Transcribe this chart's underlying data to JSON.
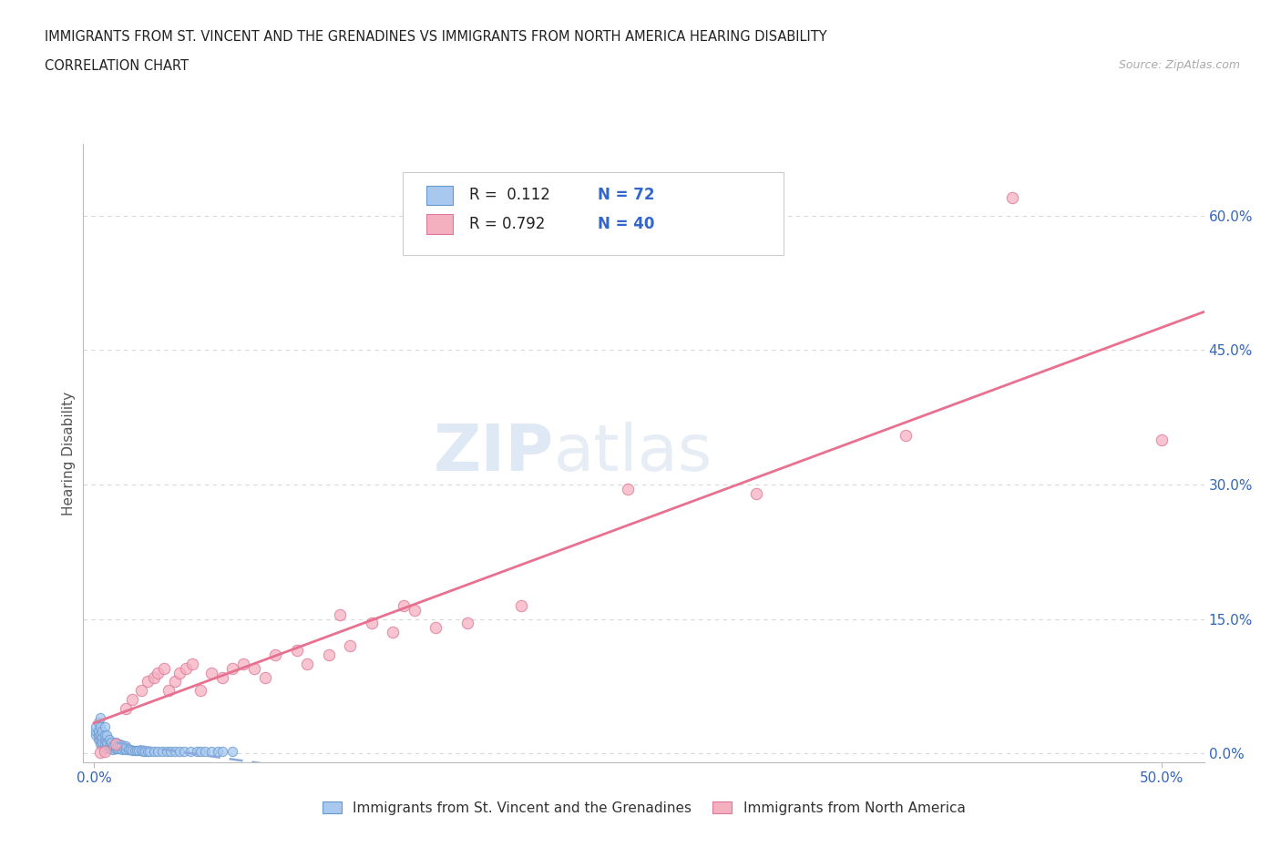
{
  "title_line1": "IMMIGRANTS FROM ST. VINCENT AND THE GRENADINES VS IMMIGRANTS FROM NORTH AMERICA HEARING DISABILITY",
  "title_line2": "CORRELATION CHART",
  "source": "Source: ZipAtlas.com",
  "ylabel": "Hearing Disability",
  "ytick_labels": [
    "0.0%",
    "15.0%",
    "30.0%",
    "45.0%",
    "60.0%"
  ],
  "ytick_values": [
    0.0,
    0.15,
    0.3,
    0.45,
    0.6
  ],
  "xtick_labels": [
    "0.0%",
    "50.0%"
  ],
  "xtick_values": [
    0.0,
    0.5
  ],
  "xlim": [
    -0.005,
    0.52
  ],
  "ylim": [
    -0.01,
    0.68
  ],
  "series1_name": "Immigrants from St. Vincent and the Grenadines",
  "series1_R": 0.112,
  "series1_N": 72,
  "series1_fill": "#a8c8f0",
  "series1_edge": "#6699cc",
  "series1_line": "#88aadd",
  "series2_name": "Immigrants from North America",
  "series2_R": 0.792,
  "series2_N": 40,
  "series2_fill": "#f5b0c0",
  "series2_edge": "#dd7799",
  "series2_line": "#e87090",
  "bg_color": "#ffffff",
  "grid_color": "#d8d8d8",
  "title_color": "#222222",
  "axis_label_color": "#3366bb",
  "ylabel_color": "#555555",
  "watermark_color": "#d0e4f5",
  "legend_R_color": "#222222",
  "legend_N_color": "#3366cc",
  "blue_x": [
    0.001,
    0.001,
    0.001,
    0.002,
    0.002,
    0.002,
    0.002,
    0.003,
    0.003,
    0.003,
    0.003,
    0.003,
    0.004,
    0.004,
    0.004,
    0.004,
    0.005,
    0.005,
    0.005,
    0.005,
    0.005,
    0.006,
    0.006,
    0.006,
    0.006,
    0.007,
    0.007,
    0.007,
    0.008,
    0.008,
    0.008,
    0.009,
    0.009,
    0.01,
    0.01,
    0.01,
    0.011,
    0.011,
    0.012,
    0.012,
    0.013,
    0.013,
    0.014,
    0.015,
    0.015,
    0.016,
    0.017,
    0.018,
    0.019,
    0.02,
    0.021,
    0.022,
    0.023,
    0.024,
    0.025,
    0.026,
    0.028,
    0.03,
    0.032,
    0.034,
    0.036,
    0.038,
    0.04,
    0.042,
    0.045,
    0.048,
    0.05,
    0.052,
    0.055,
    0.058,
    0.06,
    0.065
  ],
  "blue_y": [
    0.02,
    0.025,
    0.03,
    0.015,
    0.02,
    0.025,
    0.035,
    0.01,
    0.015,
    0.02,
    0.03,
    0.04,
    0.008,
    0.012,
    0.018,
    0.025,
    0.006,
    0.01,
    0.015,
    0.02,
    0.03,
    0.005,
    0.008,
    0.012,
    0.02,
    0.005,
    0.008,
    0.015,
    0.005,
    0.008,
    0.012,
    0.004,
    0.008,
    0.005,
    0.008,
    0.012,
    0.005,
    0.009,
    0.005,
    0.01,
    0.004,
    0.009,
    0.005,
    0.004,
    0.008,
    0.004,
    0.004,
    0.003,
    0.003,
    0.003,
    0.003,
    0.003,
    0.002,
    0.002,
    0.002,
    0.002,
    0.002,
    0.002,
    0.002,
    0.002,
    0.002,
    0.002,
    0.002,
    0.002,
    0.002,
    0.002,
    0.002,
    0.002,
    0.002,
    0.002,
    0.002,
    0.002
  ],
  "pink_x": [
    0.003,
    0.005,
    0.01,
    0.015,
    0.018,
    0.022,
    0.025,
    0.028,
    0.03,
    0.033,
    0.035,
    0.038,
    0.04,
    0.043,
    0.046,
    0.05,
    0.055,
    0.06,
    0.065,
    0.07,
    0.075,
    0.08,
    0.085,
    0.095,
    0.1,
    0.11,
    0.115,
    0.12,
    0.13,
    0.14,
    0.145,
    0.15,
    0.16,
    0.175,
    0.2,
    0.25,
    0.31,
    0.38,
    0.43,
    0.5
  ],
  "pink_y": [
    0.001,
    0.002,
    0.01,
    0.05,
    0.06,
    0.07,
    0.08,
    0.085,
    0.09,
    0.095,
    0.07,
    0.08,
    0.09,
    0.095,
    0.1,
    0.07,
    0.09,
    0.085,
    0.095,
    0.1,
    0.095,
    0.085,
    0.11,
    0.115,
    0.1,
    0.11,
    0.155,
    0.12,
    0.145,
    0.135,
    0.165,
    0.16,
    0.14,
    0.145,
    0.165,
    0.295,
    0.29,
    0.355,
    0.62,
    0.35
  ]
}
